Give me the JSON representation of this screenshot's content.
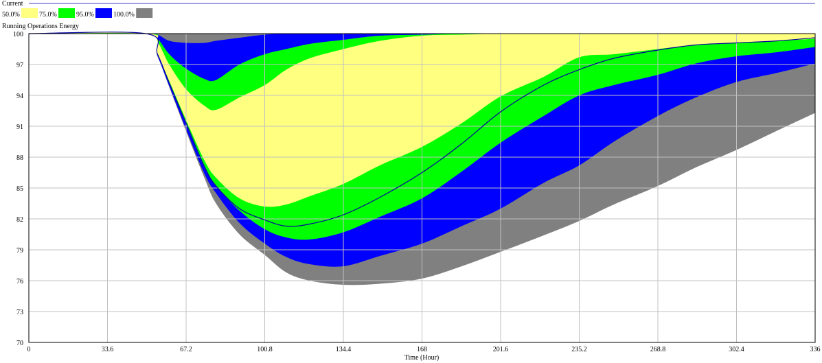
{
  "chart_data": {
    "type": "area",
    "run_name": "Current",
    "title": "Running Operations Energy",
    "xlabel": "Time (Hour)",
    "ylabel": "",
    "xlim": [
      0,
      336
    ],
    "ylim": [
      70,
      100
    ],
    "x_ticks": [
      "0",
      "33.6",
      "67.2",
      "100.8",
      "134.4",
      "168",
      "201.6",
      "235.2",
      "268.8",
      "302.4",
      "336"
    ],
    "y_ticks": [
      "70",
      "73",
      "76",
      "79",
      "82",
      "85",
      "88",
      "91",
      "94",
      "97",
      "100"
    ],
    "grid": true,
    "legend_position": "top-left",
    "legend": [
      {
        "label": "50.0%",
        "color": "#ffff80"
      },
      {
        "label": "75.0%",
        "color": "#00ff00"
      },
      {
        "label": "95.0%",
        "color": "#0000ff"
      },
      {
        "label": "100.0%",
        "color": "#808080"
      }
    ],
    "x": [
      0,
      50,
      55,
      60,
      67.2,
      75,
      80,
      90,
      100.8,
      110,
      120,
      134.4,
      150,
      168,
      185,
      201.6,
      220,
      235.2,
      250,
      268.8,
      285,
      302.4,
      320,
      336
    ],
    "bands": [
      {
        "name": "100.0%",
        "color": "#808080",
        "upper": [
          100,
          100,
          100,
          100,
          100,
          100,
          100,
          100,
          100,
          100,
          100,
          100,
          100,
          100,
          100,
          100,
          100,
          100,
          100,
          100,
          100,
          100,
          100,
          100
        ],
        "lower": [
          100,
          100,
          97.8,
          94.8,
          90.5,
          86.0,
          83.5,
          80.5,
          78.5,
          76.8,
          76.0,
          75.6,
          75.7,
          76.2,
          77.4,
          78.8,
          80.4,
          81.8,
          83.4,
          85.2,
          87.0,
          88.7,
          90.6,
          92.3
        ]
      },
      {
        "name": "95.0%",
        "color": "#0000ff",
        "upper": [
          100,
          100,
          99.9,
          99.3,
          99.1,
          99.1,
          99.3,
          99.6,
          99.9,
          100,
          100,
          100,
          100,
          100,
          100,
          100,
          100,
          100,
          100,
          100,
          100,
          100,
          100,
          100
        ],
        "lower": [
          100,
          100,
          97.8,
          94.9,
          90.7,
          86.4,
          84.5,
          81.6,
          79.6,
          78.3,
          77.6,
          77.4,
          78.4,
          79.6,
          81.3,
          83.0,
          85.5,
          87.2,
          89.5,
          92.0,
          93.8,
          95.3,
          96.2,
          97.1
        ]
      },
      {
        "name": "75.0%",
        "color": "#00ff00",
        "upper": [
          100,
          100,
          99.5,
          98.0,
          96.6,
          95.6,
          95.5,
          97.0,
          98.0,
          98.5,
          99.0,
          99.4,
          99.8,
          99.9,
          100,
          100,
          100,
          100,
          100,
          100,
          100,
          100,
          100,
          100
        ],
        "lower": [
          100,
          100,
          97.9,
          95.2,
          91.2,
          87.0,
          85.2,
          82.8,
          81.0,
          80.2,
          80.0,
          80.7,
          82.2,
          84.0,
          86.6,
          89.4,
          92.0,
          94.0,
          95.0,
          96.0,
          97.1,
          97.8,
          98.2,
          98.7
        ]
      },
      {
        "name": "50.0%",
        "color": "#ffff80",
        "upper": [
          100,
          100,
          99.2,
          97.0,
          94.6,
          93.0,
          92.6,
          93.8,
          95.0,
          96.5,
          97.6,
          98.5,
          99.3,
          99.8,
          99.9,
          100,
          100,
          100,
          100,
          100,
          100,
          100,
          100,
          100
        ],
        "lower": [
          100,
          100,
          98.0,
          95.4,
          91.6,
          87.7,
          86.0,
          84.0,
          83.2,
          83.4,
          84.2,
          85.4,
          87.2,
          89.0,
          91.3,
          93.9,
          95.8,
          97.7,
          98.0,
          98.5,
          98.9,
          99.1,
          99.3,
          99.5
        ]
      }
    ],
    "series": [
      {
        "name": "Current",
        "color": "#0000a0",
        "values": [
          100,
          100,
          98.0,
          95.2,
          91.3,
          87.1,
          85.2,
          83.0,
          81.9,
          81.3,
          81.5,
          82.4,
          84.1,
          86.5,
          89.3,
          92.4,
          95.0,
          96.5,
          97.6,
          98.4,
          98.9,
          99.1,
          99.3,
          99.6
        ]
      }
    ]
  }
}
